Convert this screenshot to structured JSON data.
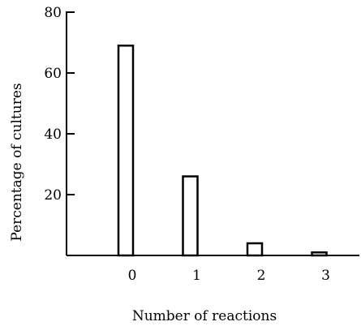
{
  "chart_data": {
    "type": "bar",
    "title": "",
    "xlabel": "Number of reactions",
    "ylabel": "Percentage of cultures",
    "categories": [
      "0",
      "1",
      "2",
      "3"
    ],
    "values": [
      69,
      26,
      4,
      1
    ],
    "ylim": [
      0,
      80
    ],
    "yticks": [
      "80",
      "60",
      "40",
      "20"
    ],
    "ytick_values": [
      80,
      60,
      40,
      20
    ],
    "grid": false
  }
}
